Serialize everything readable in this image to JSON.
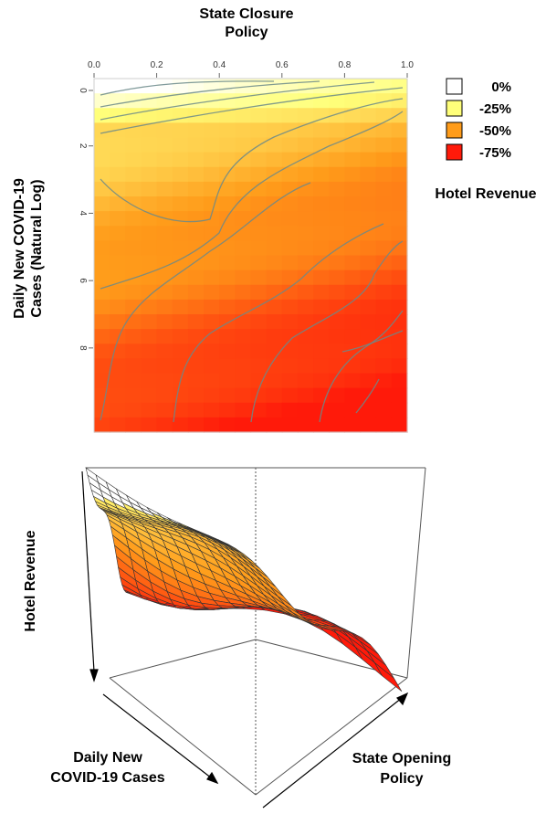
{
  "chart_data": [
    {
      "type": "heatmap",
      "title": "State Closure\nPolicy",
      "ylabel": "Daily New COVID-19\nCases (Natural Log)",
      "x_ticks": [
        "0.0",
        "0.2",
        "0.4",
        "0.6",
        "0.8",
        "1.0"
      ],
      "y_ticks": [
        "0",
        "2",
        "4",
        "6",
        "8"
      ],
      "xlim": [
        0,
        1
      ],
      "ylim": [
        0,
        10.5
      ],
      "legend": {
        "title": "Hotel Revenue",
        "position": "top-right",
        "items": [
          {
            "label": "0%",
            "color": "#ffffff"
          },
          {
            "label": "-25%",
            "color": "#ffff7a"
          },
          {
            "label": "-50%",
            "color": "#ff9c1a"
          },
          {
            "label": "-75%",
            "color": "#ff1a0a"
          }
        ]
      },
      "grid": false
    },
    {
      "type": "surface",
      "xlabel": "Daily New\nCOVID-19 Cases",
      "ylabel": "State Opening\nPolicy",
      "zlabel": "Hotel Revenue",
      "grid": false
    }
  ]
}
